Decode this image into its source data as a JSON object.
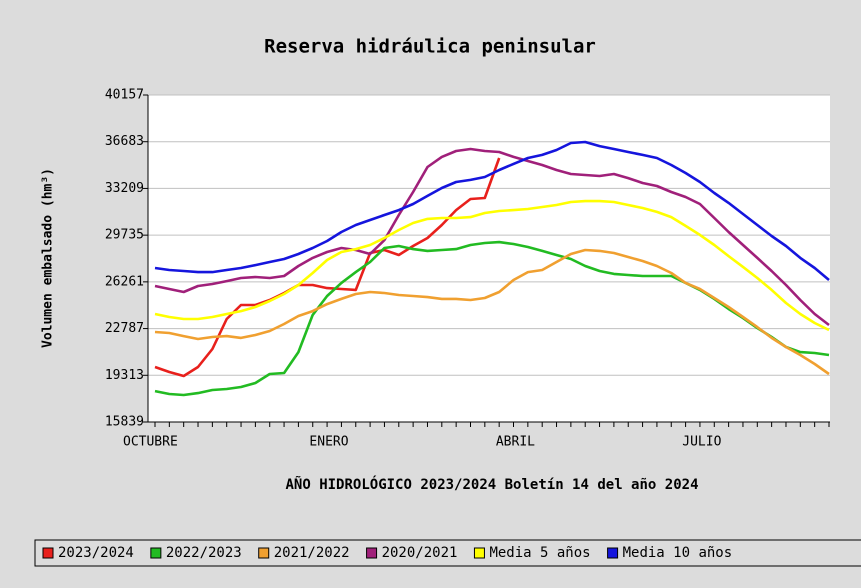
{
  "chart_data": {
    "type": "line",
    "title": "Reserva hidráulica peninsular",
    "ylabel": "Volumen embalsado (hm³)",
    "xlabel": "AÑO HIDROLÓGICO 2023/2024 Boletín 14 del año 2024",
    "categories": [
      "OCTUBRE",
      null,
      null,
      null,
      null,
      null,
      null,
      null,
      null,
      null,
      null,
      null,
      null,
      "ENERO",
      null,
      null,
      null,
      null,
      null,
      null,
      null,
      null,
      null,
      null,
      null,
      null,
      "ABRIL",
      null,
      null,
      null,
      null,
      null,
      null,
      null,
      null,
      null,
      null,
      null,
      null,
      "JULIO",
      null,
      null,
      null,
      null,
      null,
      null,
      null,
      null
    ],
    "ylim": [
      15839,
      40157
    ],
    "yticks": [
      15839,
      19313,
      22787,
      26261,
      29735,
      33209,
      36683,
      40157
    ],
    "grid": true,
    "legend": "bottom",
    "series": [
      {
        "name": "2023/2024",
        "color": "#e8201c",
        "values": [
          19930,
          19560,
          19260,
          19930,
          21270,
          23500,
          24540,
          24540,
          24910,
          25430,
          26030,
          26030,
          25800,
          25730,
          25660,
          28410,
          28630,
          28260,
          28930,
          29520,
          30490,
          31600,
          32420,
          32500,
          35470,
          null,
          null,
          null,
          null,
          null,
          null,
          null,
          null,
          null,
          null,
          null,
          null,
          null,
          null,
          null,
          null,
          null,
          null,
          null,
          null,
          null,
          null,
          null
        ]
      },
      {
        "name": "2022/2023",
        "color": "#22bb22",
        "values": [
          18140,
          17920,
          17850,
          17990,
          18220,
          18290,
          18440,
          18740,
          19410,
          19480,
          21040,
          23800,
          25210,
          26180,
          26990,
          27740,
          28780,
          28930,
          28700,
          28560,
          28630,
          28700,
          29000,
          29150,
          29220,
          29080,
          28850,
          28560,
          28260,
          27960,
          27440,
          27070,
          26850,
          26770,
          26700,
          26700,
          26700,
          26180,
          25660,
          24990,
          24240,
          23570,
          22830,
          22160,
          21420,
          21040,
          20970,
          20820
        ]
      },
      {
        "name": "2021/2022",
        "color": "#f0a030",
        "values": [
          22530,
          22460,
          22230,
          22010,
          22160,
          22230,
          22090,
          22310,
          22610,
          23130,
          23720,
          24090,
          24610,
          24990,
          25360,
          25510,
          25430,
          25280,
          25210,
          25130,
          24990,
          24990,
          24910,
          25060,
          25510,
          26400,
          26990,
          27140,
          27740,
          28330,
          28630,
          28560,
          28410,
          28110,
          27810,
          27440,
          26920,
          26180,
          25730,
          25060,
          24390,
          23650,
          22900,
          22090,
          21420,
          20820,
          20150,
          19410
        ]
      },
      {
        "name": "2020/2021",
        "color": "#a0207a",
        "values": [
          25950,
          25730,
          25510,
          25950,
          26100,
          26320,
          26550,
          26620,
          26550,
          26700,
          27440,
          28040,
          28480,
          28780,
          28630,
          28330,
          29370,
          31230,
          32940,
          34800,
          35550,
          35990,
          36140,
          35990,
          35920,
          35550,
          35250,
          34950,
          34580,
          34280,
          34210,
          34130,
          34280,
          33980,
          33610,
          33390,
          32940,
          32570,
          32050,
          31010,
          29970,
          29000,
          28040,
          27070,
          26030,
          24910,
          23870,
          23050
        ]
      },
      {
        "name": "Media 5 años",
        "color": "#ffff00",
        "values": [
          23870,
          23650,
          23500,
          23500,
          23650,
          23870,
          24090,
          24390,
          24840,
          25360,
          26030,
          26920,
          27890,
          28480,
          28700,
          29000,
          29520,
          30120,
          30640,
          30940,
          31010,
          31010,
          31080,
          31380,
          31530,
          31600,
          31680,
          31830,
          31980,
          32200,
          32270,
          32270,
          32200,
          31980,
          31750,
          31460,
          31080,
          30420,
          29750,
          29000,
          28180,
          27370,
          26550,
          25660,
          24690,
          23870,
          23200,
          22680
        ]
      },
      {
        "name": "Media 10 años",
        "color": "#1515dd",
        "values": [
          27290,
          27140,
          27070,
          26990,
          26990,
          27140,
          27290,
          27510,
          27740,
          27960,
          28330,
          28780,
          29300,
          29970,
          30490,
          30860,
          31230,
          31600,
          32050,
          32650,
          33240,
          33690,
          33840,
          34060,
          34580,
          35030,
          35470,
          35700,
          36070,
          36590,
          36660,
          36360,
          36140,
          35920,
          35700,
          35470,
          34950,
          34360,
          33690,
          32870,
          32130,
          31310,
          30490,
          29670,
          28930,
          28040,
          27290,
          26400
        ]
      }
    ]
  }
}
